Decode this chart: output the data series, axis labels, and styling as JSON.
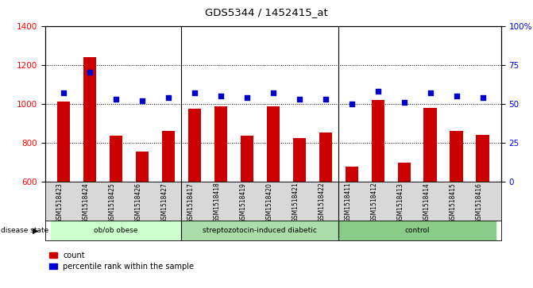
{
  "title": "GDS5344 / 1452415_at",
  "samples": [
    "GSM1518423",
    "GSM1518424",
    "GSM1518425",
    "GSM1518426",
    "GSM1518427",
    "GSM1518417",
    "GSM1518418",
    "GSM1518419",
    "GSM1518420",
    "GSM1518421",
    "GSM1518422",
    "GSM1518411",
    "GSM1518412",
    "GSM1518413",
    "GSM1518414",
    "GSM1518415",
    "GSM1518416"
  ],
  "counts": [
    1010,
    1240,
    835,
    755,
    860,
    975,
    985,
    835,
    985,
    825,
    850,
    675,
    1020,
    695,
    980,
    860,
    840
  ],
  "percentile_ranks": [
    57,
    70,
    53,
    52,
    54,
    57,
    55,
    54,
    57,
    53,
    53,
    50,
    58,
    51,
    57,
    55,
    54
  ],
  "groups": [
    {
      "label": "ob/ob obese",
      "start": 0,
      "end": 5,
      "color": "#ccffcc"
    },
    {
      "label": "streptozotocin-induced diabetic",
      "start": 5,
      "end": 11,
      "color": "#99ee99"
    },
    {
      "label": "control",
      "start": 11,
      "end": 17,
      "color": "#66dd66"
    }
  ],
  "bar_color": "#cc0000",
  "dot_color": "#0000cc",
  "ylim_left": [
    600,
    1400
  ],
  "ylim_right": [
    0,
    100
  ],
  "yticks_left": [
    600,
    800,
    1000,
    1200,
    1400
  ],
  "yticks_right": [
    0,
    25,
    50,
    75,
    100
  ],
  "yticklabels_right": [
    "0",
    "25",
    "50",
    "75",
    "100%"
  ],
  "bar_width": 0.5,
  "grid_color": "black",
  "bg_color": "#d8d8d8",
  "plot_bg": "white",
  "group_separators": [
    4.5,
    10.5
  ]
}
